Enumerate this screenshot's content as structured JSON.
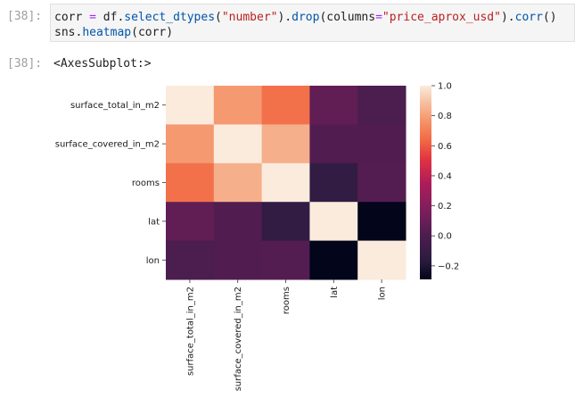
{
  "cells": [
    {
      "prompt_in": "[38]:",
      "code_line1": {
        "var": "corr",
        "eq": "=",
        "obj": "df",
        "m1": "select_dtypes",
        "arg1": "\"number\"",
        "m2": "drop",
        "kw": "columns",
        "arg2": "\"price_aprox_usd\"",
        "m3": "corr"
      },
      "code_line2": {
        "obj": "sns",
        "m": "heatmap",
        "arg": "corr"
      },
      "prompt_out": "[38]:",
      "output_text": "<AxesSubplot:>"
    }
  ],
  "chart_data": {
    "type": "heatmap",
    "rows": [
      "surface_total_in_m2",
      "surface_covered_in_m2",
      "rooms",
      "lat",
      "lon"
    ],
    "columns": [
      "surface_total_in_m2",
      "surface_covered_in_m2",
      "rooms",
      "lat",
      "lon"
    ],
    "values": [
      [
        1.0,
        0.78,
        0.66,
        0.07,
        0.0
      ],
      [
        0.78,
        1.0,
        0.84,
        0.02,
        0.02
      ],
      [
        0.66,
        0.84,
        1.0,
        -0.12,
        0.03
      ],
      [
        0.07,
        0.02,
        -0.12,
        1.0,
        -0.29
      ],
      [
        0.0,
        0.02,
        0.03,
        -0.29,
        1.0
      ]
    ],
    "colorbar": {
      "ticks": [
        "1.0",
        "0.8",
        "0.6",
        "0.4",
        "0.2",
        "0.0",
        "−0.2"
      ],
      "tick_values": [
        1.0,
        0.8,
        0.6,
        0.4,
        0.2,
        0.0,
        -0.2
      ],
      "range": [
        -0.29,
        1.0
      ],
      "colormap": "rocket"
    }
  }
}
